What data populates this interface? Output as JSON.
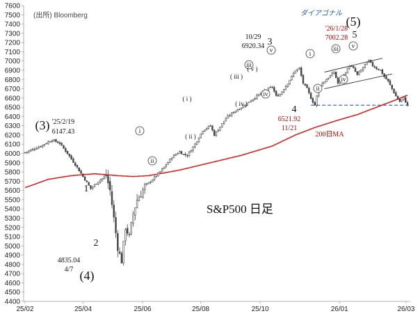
{
  "chart_data": {
    "type": "candlestick",
    "title": "S&P500 日足",
    "source": "(出所) Bloomberg",
    "ylim": [
      4400,
      7600
    ],
    "y_ticks": [
      4400,
      4500,
      4600,
      4700,
      4800,
      4900,
      5000,
      5100,
      5200,
      5300,
      5400,
      5500,
      5600,
      5700,
      5800,
      5900,
      6000,
      6100,
      6200,
      6300,
      6400,
      6500,
      6600,
      6700,
      6800,
      6900,
      7000,
      7100,
      7200,
      7300,
      7400,
      7500,
      7600
    ],
    "x_ticks": [
      "25/02",
      "25/04",
      "25/06",
      "25/08",
      "25/10",
      "26/01",
      "26/03"
    ],
    "price_path": [
      [
        0,
        6010
      ],
      [
        8,
        6080
      ],
      [
        14,
        6147
      ],
      [
        18,
        6110
      ],
      [
        22,
        6000
      ],
      [
        26,
        5880
      ],
      [
        30,
        5750
      ],
      [
        34,
        5620
      ],
      [
        38,
        5700
      ],
      [
        42,
        5760
      ],
      [
        44,
        5600
      ],
      [
        46,
        5300
      ],
      [
        48,
        4980
      ],
      [
        50,
        4835
      ],
      [
        52,
        5200
      ],
      [
        54,
        5100
      ],
      [
        56,
        5350
      ],
      [
        58,
        5500
      ],
      [
        60,
        5560
      ],
      [
        62,
        5650
      ],
      [
        64,
        5680
      ],
      [
        68,
        5760
      ],
      [
        72,
        5850
      ],
      [
        76,
        5960
      ],
      [
        80,
        6020
      ],
      [
        82,
        5990
      ],
      [
        84,
        5980
      ],
      [
        88,
        6100
      ],
      [
        92,
        6250
      ],
      [
        96,
        6300
      ],
      [
        98,
        6200
      ],
      [
        100,
        6260
      ],
      [
        104,
        6380
      ],
      [
        108,
        6450
      ],
      [
        112,
        6500
      ],
      [
        116,
        6560
      ],
      [
        120,
        6620
      ],
      [
        124,
        6680
      ],
      [
        128,
        6720
      ],
      [
        130,
        6620
      ],
      [
        132,
        6640
      ],
      [
        136,
        6760
      ],
      [
        140,
        6900
      ],
      [
        142,
        6920
      ],
      [
        144,
        6760
      ],
      [
        146,
        6700
      ],
      [
        148,
        6600
      ],
      [
        150,
        6522
      ],
      [
        152,
        6720
      ],
      [
        156,
        6800
      ],
      [
        160,
        6880
      ],
      [
        162,
        6760
      ],
      [
        164,
        6820
      ],
      [
        166,
        6880
      ],
      [
        168,
        6950
      ],
      [
        170,
        6920
      ],
      [
        172,
        6850
      ],
      [
        174,
        6900
      ],
      [
        176,
        6960
      ],
      [
        178,
        7002
      ],
      [
        180,
        6950
      ],
      [
        182,
        6920
      ],
      [
        184,
        6900
      ],
      [
        186,
        6830
      ],
      [
        188,
        6780
      ],
      [
        190,
        6700
      ],
      [
        192,
        6620
      ],
      [
        194,
        6560
      ],
      [
        196,
        6600
      ],
      [
        198,
        6520
      ]
    ],
    "ma200_path": [
      [
        0,
        5630
      ],
      [
        12,
        5720
      ],
      [
        24,
        5760
      ],
      [
        36,
        5780
      ],
      [
        48,
        5760
      ],
      [
        56,
        5750
      ],
      [
        64,
        5760
      ],
      [
        80,
        5820
      ],
      [
        96,
        5900
      ],
      [
        112,
        5980
      ],
      [
        128,
        6080
      ],
      [
        140,
        6200
      ],
      [
        150,
        6280
      ],
      [
        162,
        6360
      ],
      [
        172,
        6420
      ],
      [
        182,
        6500
      ],
      [
        192,
        6580
      ],
      [
        198,
        6630
      ]
    ],
    "support_level": 6522,
    "annotations": {
      "wave3_big": "(3)",
      "wave3_date": "'25/2/19",
      "wave3_value": "6147.43",
      "wave4_big": "(4)",
      "wave4_value": "4835.04",
      "wave4_date": "4/7",
      "wave5_big": "(5)",
      "wave5_date": "'26/1/28",
      "wave5_value": "7002.28",
      "peak3_date": "10/29",
      "peak3_value": "6920.34",
      "low4_value": "6521.92",
      "low4_date": "11/21",
      "ma_label": "200日MA",
      "diagonal_label": "ダイアゴナル",
      "wave_1": "1",
      "wave_2": "2",
      "wave_3": "3",
      "wave_4": "4",
      "wave_5": "5",
      "roman_i": "i",
      "roman_ii": "ii",
      "roman_iii": "iii",
      "roman_iv": "iv",
      "roman_v": "v",
      "paren_i": "( i )",
      "paren_ii": "( ii )",
      "paren_iii": "( iii )",
      "paren_iv": "( iv )",
      "paren_v": "( v )"
    },
    "colors": {
      "candles": "#444444",
      "ma200": "#e02020",
      "support": "#1f5fa8",
      "channel": "#333333"
    }
  }
}
